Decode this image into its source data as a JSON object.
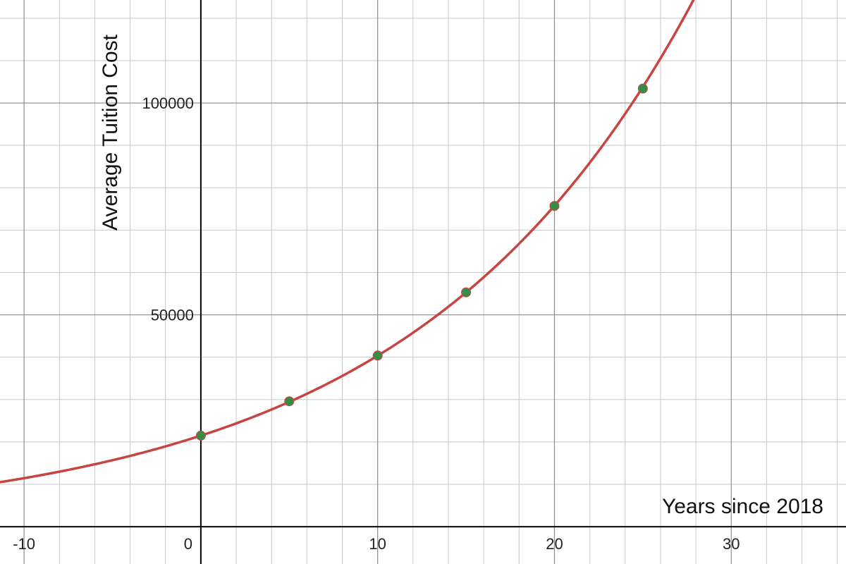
{
  "chart_data": {
    "type": "scatter",
    "xlabel": "Years since 2018",
    "ylabel": "Average Tuition Cost",
    "xlim": [
      -11.36,
      36.49
    ],
    "ylim": [
      -8800,
      124300
    ],
    "grid": true,
    "x_major_ticks": [
      -10,
      0,
      10,
      20,
      30
    ],
    "x_tick_labels": [
      "-10",
      "0",
      "10",
      "20",
      "30"
    ],
    "y_major_ticks": [
      50000,
      100000
    ],
    "y_tick_labels": [
      "50000",
      "100000"
    ],
    "x_minor_step": 2,
    "y_minor_step": 10000,
    "points": {
      "x": [
        0,
        5,
        10,
        15,
        20,
        25
      ],
      "y": [
        21500,
        29600,
        40400,
        55300,
        75700,
        103400
      ],
      "color": "#388c46"
    },
    "curve": {
      "model": "exponential",
      "a": 21500,
      "b": 1.065,
      "color": "#c74440"
    }
  },
  "colors": {
    "axis": "#000000",
    "major_grid": "#8c8c8c",
    "minor_grid": "#c8c8c8"
  }
}
